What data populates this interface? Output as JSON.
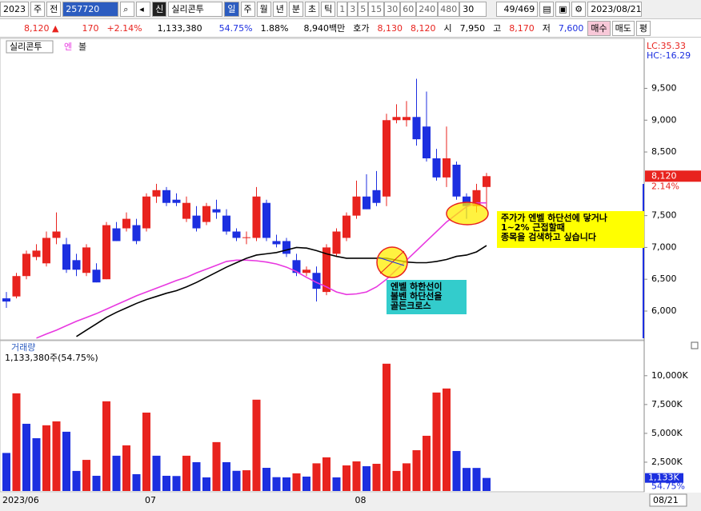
{
  "toolbar": {
    "year": "2023",
    "period_select": "주",
    "prev": "전",
    "code": "257720",
    "badge": "신",
    "name": "실리콘투",
    "periods": [
      "일",
      "주",
      "월",
      "년",
      "분",
      "초",
      "틱"
    ],
    "intervals": [
      "1",
      "3",
      "5",
      "15",
      "30",
      "60",
      "240",
      "480"
    ],
    "count": "30",
    "page": "49/469",
    "date": "2023/08/21"
  },
  "quote_bar": {
    "price": "8,120 ▲",
    "change": "170",
    "change_pct": "+2.14%",
    "volume": "1,133,380",
    "volume_ratio": "54.75%",
    "turnover": "1.88%",
    "amount": "8,940백만",
    "bid_label": "호가",
    "ask": "8,130",
    "bid": "8,120",
    "open_label": "시",
    "open": "7,950",
    "high_label": "고",
    "high": "8,170",
    "low_label": "저",
    "low": "7,600",
    "buttons": [
      "매수",
      "매도",
      "평"
    ]
  },
  "chart_data": [
    {
      "type": "candlestick",
      "title": "실리콘투",
      "lc": "LC:35.33",
      "hc": "HC:-16.29",
      "last_label": "8,120",
      "last_change": "2.14%",
      "up_color": "#e8231e",
      "down_color": "#1c2fe0",
      "open": [
        6200,
        6230,
        6550,
        6850,
        6750,
        7150,
        7050,
        6800,
        6600,
        6650,
        6500,
        7300,
        7300,
        7350,
        7300,
        7800,
        7900,
        7750,
        7450,
        7500,
        7400,
        7600,
        7500,
        7250,
        7150,
        7150,
        7700,
        7100,
        7100,
        6800,
        6600,
        6600,
        6300,
        6900,
        7150,
        7500,
        7800,
        7900,
        7800,
        9000,
        9000,
        9050,
        8900,
        8400,
        8100,
        8300,
        7800,
        7650,
        7950
      ],
      "high": [
        6300,
        6600,
        6950,
        7050,
        7250,
        7550,
        7150,
        6900,
        7050,
        6750,
        7400,
        7400,
        7550,
        7450,
        7850,
        8000,
        7950,
        7850,
        7800,
        7650,
        7700,
        7750,
        7600,
        7300,
        7250,
        7950,
        7750,
        7200,
        7150,
        6900,
        6700,
        6700,
        7050,
        7300,
        7550,
        8050,
        8150,
        8200,
        9100,
        9250,
        9300,
        9650,
        9450,
        8550,
        8900,
        8350,
        7850,
        8000,
        8170
      ],
      "low": [
        6050,
        6200,
        6500,
        6800,
        6700,
        7050,
        6600,
        6550,
        6550,
        6450,
        6500,
        7100,
        7250,
        7050,
        7250,
        7700,
        7650,
        7650,
        7400,
        7250,
        7350,
        7450,
        7200,
        7100,
        7050,
        7100,
        7100,
        7000,
        6850,
        6550,
        6550,
        6150,
        6250,
        6850,
        7100,
        7450,
        7600,
        7650,
        7650,
        8950,
        8900,
        8600,
        8350,
        8050,
        7950,
        7750,
        7450,
        7550,
        7600
      ],
      "close": [
        6150,
        6550,
        6900,
        6950,
        7150,
        7250,
        6650,
        6650,
        7000,
        6450,
        7350,
        7100,
        7450,
        7100,
        7800,
        7900,
        7700,
        7700,
        7700,
        7300,
        7650,
        7550,
        7250,
        7150,
        7160,
        7800,
        7150,
        7050,
        6900,
        6600,
        6650,
        6350,
        7000,
        7250,
        7500,
        7800,
        7600,
        7700,
        9000,
        9050,
        9050,
        8700,
        8400,
        8100,
        8400,
        7800,
        7650,
        7900,
        8120
      ],
      "series": [
        {
          "name": "엔",
          "color": "#e838e0",
          "values": [
            null,
            null,
            null,
            5575,
            5640,
            5700,
            5770,
            5840,
            5900,
            5960,
            6030,
            6100,
            6170,
            6240,
            6300,
            6360,
            6420,
            6480,
            6530,
            6600,
            6660,
            6720,
            6780,
            6800,
            6800,
            6790,
            6770,
            6740,
            6690,
            6620,
            6530,
            6450,
            6380,
            6300,
            6260,
            6270,
            6300,
            6380,
            6500,
            6650,
            6800,
            6950,
            7100,
            7250,
            7400,
            7520,
            7640,
            7700,
            7700
          ]
        },
        {
          "name": "볼",
          "color": "#000000",
          "values": [
            null,
            null,
            null,
            null,
            null,
            null,
            null,
            5600,
            5700,
            5800,
            5900,
            5980,
            6050,
            6120,
            6180,
            6230,
            6280,
            6320,
            6380,
            6450,
            6530,
            6610,
            6690,
            6760,
            6830,
            6880,
            6900,
            6920,
            6960,
            7000,
            6990,
            6950,
            6900,
            6860,
            6830,
            6830,
            6830,
            6830,
            6830,
            6800,
            6770,
            6760,
            6760,
            6780,
            6810,
            6860,
            6880,
            6930,
            7030
          ]
        }
      ],
      "ylim": [
        5560,
        10260
      ],
      "yticks": [
        {
          "value": 6000,
          "label": "6,000"
        },
        {
          "value": 6500,
          "label": "6,500"
        },
        {
          "value": 7000,
          "label": "7,000"
        },
        {
          "value": 7500,
          "label": "7,500"
        },
        {
          "value": 8500,
          "label": "8,500"
        },
        {
          "value": 9000,
          "label": "9,000"
        },
        {
          "value": 9500,
          "label": "9,500"
        }
      ],
      "annotations": [
        {
          "lines": [
            "주가가 엔벨 하단선에 닿거나",
            "1~2% 근접할때",
            "종목을 검색하고 싶습니다"
          ]
        },
        {
          "lines": [
            "엔벨 하한선이",
            "볼벤 하단선을",
            "골든크로스"
          ]
        }
      ]
    },
    {
      "type": "bar",
      "title": "거래량",
      "subtitle": "1,133,380주(54.75%)",
      "ratio_label": "54.75%",
      "cursor_date": "08/21",
      "categories": [
        "2023/06",
        null,
        null,
        null,
        null,
        null,
        null,
        null,
        null,
        null,
        null,
        null,
        null,
        null,
        "07",
        null,
        null,
        null,
        null,
        null,
        null,
        null,
        null,
        null,
        null,
        null,
        null,
        null,
        null,
        null,
        null,
        null,
        null,
        null,
        null,
        "08",
        null,
        null,
        null,
        null,
        null,
        null,
        null,
        null,
        null,
        null,
        null,
        null,
        null
      ],
      "values": [
        3300,
        8470,
        5830,
        4580,
        5700,
        6040,
        5140,
        1740,
        2700,
        1320,
        7780,
        3060,
        3960,
        1460,
        6800,
        3060,
        1320,
        1300,
        3060,
        2500,
        1180,
        4240,
        2500,
        1750,
        1800,
        7920,
        2010,
        1200,
        1180,
        1530,
        1250,
        2400,
        2920,
        1180,
        2220,
        2570,
        2150,
        2360,
        11040,
        1740,
        2400,
        3540,
        4790,
        8540,
        8890,
        3470,
        2000,
        2000,
        1133
      ],
      "value_labels": [
        null,
        null,
        null,
        null,
        null,
        null,
        null,
        null,
        null,
        null,
        null,
        null,
        null,
        null,
        null,
        null,
        null,
        null,
        null,
        null,
        null,
        null,
        null,
        null,
        null,
        null,
        null,
        null,
        null,
        null,
        null,
        null,
        null,
        null,
        null,
        null,
        null,
        null,
        null,
        null,
        null,
        null,
        null,
        null,
        null,
        null,
        null,
        null,
        "1,133K"
      ],
      "bar_colors": [
        "#1c2fe0",
        "#e8231e",
        "#1c2fe0",
        "#1c2fe0",
        "#e8231e",
        "#e8231e",
        "#1c2fe0",
        "#1c2fe0",
        "#e8231e",
        "#1c2fe0",
        "#e8231e",
        "#1c2fe0",
        "#e8231e",
        "#1c2fe0",
        "#e8231e",
        "#1c2fe0",
        "#1c2fe0",
        "#1c2fe0",
        "#e8231e",
        "#1c2fe0",
        "#1c2fe0",
        "#e8231e",
        "#1c2fe0",
        "#1c2fe0",
        "#e8231e",
        "#e8231e",
        "#1c2fe0",
        "#1c2fe0",
        "#1c2fe0",
        "#e8231e",
        "#1c2fe0",
        "#e8231e",
        "#e8231e",
        "#1c2fe0",
        "#e8231e",
        "#e8231e",
        "#1c2fe0",
        "#e8231e",
        "#e8231e",
        "#e8231e",
        "#e8231e",
        "#e8231e",
        "#e8231e",
        "#e8231e",
        "#e8231e",
        "#1c2fe0",
        "#1c2fe0",
        "#1c2fe0",
        "#1c2fe0"
      ],
      "ylim": [
        0,
        12900
      ],
      "yticks": [
        {
          "value": 2500,
          "label": "2,500K"
        },
        {
          "value": 5000,
          "label": "5,000K"
        },
        {
          "value": 7500,
          "label": "7,500K"
        },
        {
          "value": 10000,
          "label": "10,000K"
        }
      ]
    }
  ]
}
